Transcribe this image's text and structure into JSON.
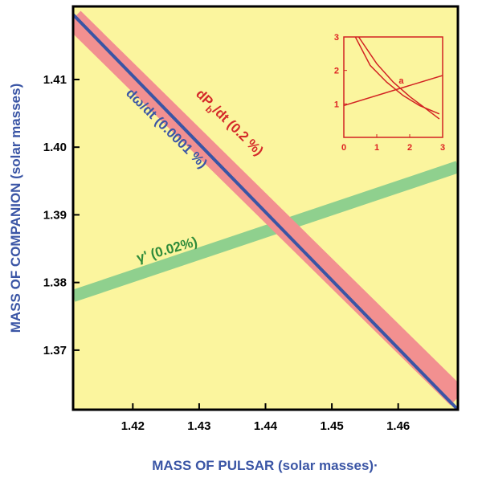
{
  "chart_data": {
    "type": "line",
    "xlabel": "MASS OF PULSAR (solar masses)·",
    "ylabel": "MASS OF COMPANION (solar masses)",
    "xlim": [
      1.411,
      1.469
    ],
    "ylim": [
      1.3612,
      1.4208
    ],
    "x_ticks": [
      1.42,
      1.43,
      1.44,
      1.45,
      1.46
    ],
    "y_ticks": [
      1.37,
      1.38,
      1.39,
      1.4,
      1.41
    ],
    "x_tick_labels": [
      "1.42",
      "1.43",
      "1.44",
      "1.45",
      "1.46"
    ],
    "y_tick_labels": [
      "1.37",
      "1.38",
      "1.39",
      "1.40",
      "1.41"
    ],
    "grid": false,
    "background_color": "#fbf59e",
    "series": [
      {
        "name": "dPb/dt",
        "label_main": "dP",
        "label_sub": "b",
        "label_rest": "/dt (0.2 %)",
        "color": "#d42a2a",
        "band_color": "#f29090",
        "kind": "band",
        "x": [
          1.411,
          1.469
        ],
        "y": [
          1.419,
          1.363
        ],
        "band_half_width": 0.0016
      },
      {
        "name": "dω/dt",
        "label": "dω/dt (0.0001 %)",
        "color": "#3a55a5",
        "kind": "line",
        "x": [
          1.411,
          1.469
        ],
        "y": [
          1.4196,
          1.3612
        ]
      },
      {
        "name": "γ'",
        "label": "γ' (0.02%)",
        "color": "#2e8b3a",
        "band_color": "#8fd08e",
        "kind": "band",
        "x": [
          1.411,
          1.469
        ],
        "y": [
          1.378,
          1.3971
        ],
        "band_half_width": 0.0009
      }
    ],
    "inset": {
      "xlim": [
        0,
        3
      ],
      "ylim": [
        0,
        3
      ],
      "x_tick_labels": [
        "0",
        "1",
        "2",
        "3"
      ],
      "y_tick_labels": [
        "1",
        "2",
        "3"
      ],
      "y_ticks": [
        1,
        2,
        3
      ],
      "x_ticks": [
        0,
        1,
        2,
        3
      ],
      "annotation": "a",
      "annotation_at": [
        1.62,
        1.42
      ],
      "color": "#d22222",
      "curves": [
        {
          "name": "dPb/dt",
          "x": [
            0.45,
            1.0,
            1.5,
            2.0,
            2.5,
            2.9
          ],
          "y": [
            3.0,
            2.2,
            1.65,
            1.22,
            0.85,
            0.55
          ]
        },
        {
          "name": "domega/dt",
          "x": [
            0.35,
            0.8,
            1.3,
            1.8,
            2.3,
            2.9
          ],
          "y": [
            3.0,
            2.15,
            1.65,
            1.25,
            0.95,
            0.7
          ]
        },
        {
          "name": "gamma",
          "x": [
            0.0,
            3.0
          ],
          "y": [
            0.95,
            1.85
          ]
        }
      ]
    }
  }
}
